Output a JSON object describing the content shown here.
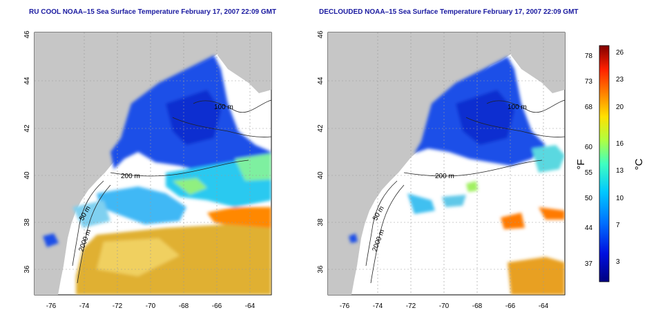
{
  "left_map": {
    "title": "RU COOL NOAA–15 Sea Surface Temperature February 17, 2007 22:09 GMT"
  },
  "right_map": {
    "title": "DECLOUDED NOAA–15 Sea Surface Temperature February 17, 2007 22:09 GMT"
  },
  "lat_ticks": [
    "36",
    "38",
    "40",
    "42",
    "44",
    "46"
  ],
  "lon_ticks": [
    "-76",
    "-74",
    "-72",
    "-70",
    "-68",
    "-66",
    "-64"
  ],
  "contour_labels": {
    "m100": "100 m",
    "m200": "200 m",
    "m50": "50 m",
    "m2000": "2000 m"
  },
  "colorbar": {
    "f_label": "°F",
    "c_label": "°C",
    "f_ticks": [
      "78",
      "73",
      "68",
      "60",
      "55",
      "50",
      "44",
      "37"
    ],
    "c_ticks": [
      "26",
      "23",
      "20",
      "16",
      "13",
      "10",
      "7",
      "3"
    ]
  },
  "colors": {
    "land": "#c6c6c6",
    "ocean": "#ffffff",
    "grid": "#9a9a9a",
    "title": "#1a1aa0"
  }
}
